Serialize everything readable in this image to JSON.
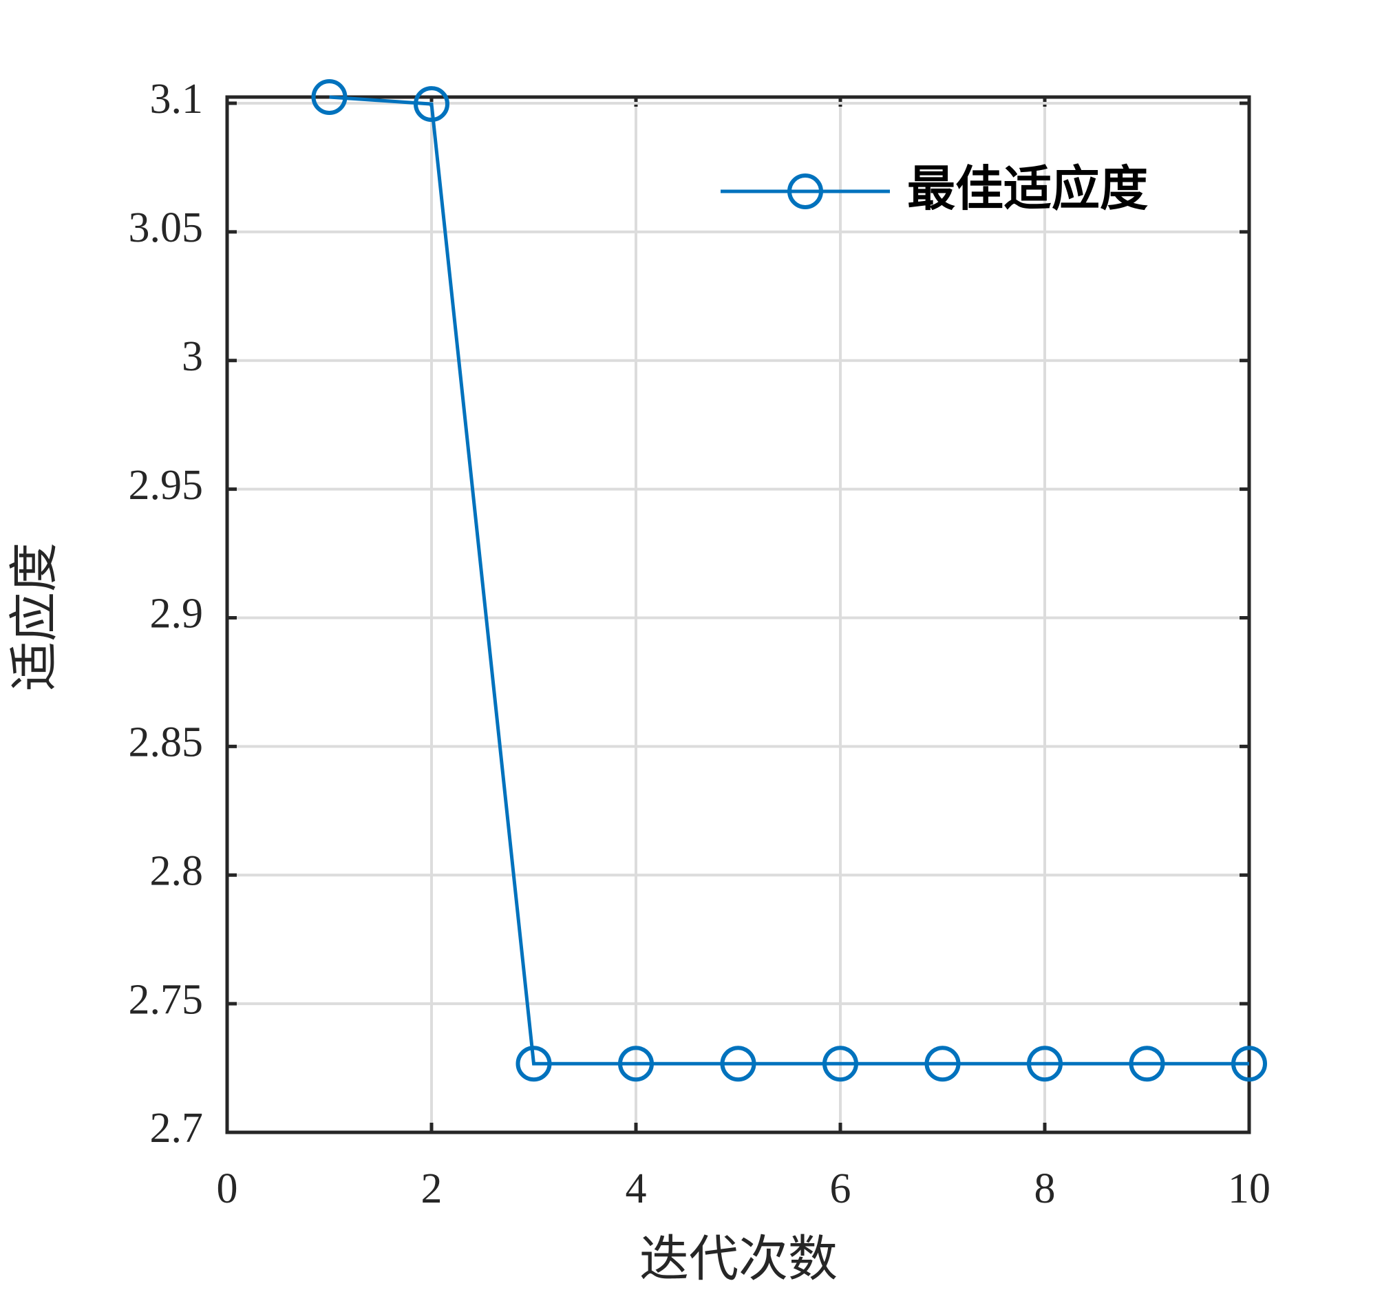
{
  "chart_data": {
    "type": "line",
    "x": [
      1,
      2,
      3,
      4,
      5,
      6,
      7,
      8,
      9,
      10
    ],
    "series": [
      {
        "name": "最佳适应度",
        "color": "#0072BD",
        "values": [
          3.1024,
          3.0997,
          2.7267,
          2.7267,
          2.7267,
          2.7267,
          2.7267,
          2.7267,
          2.7267,
          2.7267
        ]
      }
    ],
    "xlabel": "迭代次数",
    "ylabel": "适应度",
    "xlim": [
      0,
      10
    ],
    "xticks": [
      0,
      2,
      4,
      6,
      8,
      10
    ],
    "ylim": [
      2.7,
      3.1024
    ],
    "yticks": [
      2.7,
      2.75,
      2.8,
      2.85,
      2.9,
      2.95,
      3,
      3.05,
      3.1
    ],
    "grid": true,
    "legend": "top-right"
  }
}
